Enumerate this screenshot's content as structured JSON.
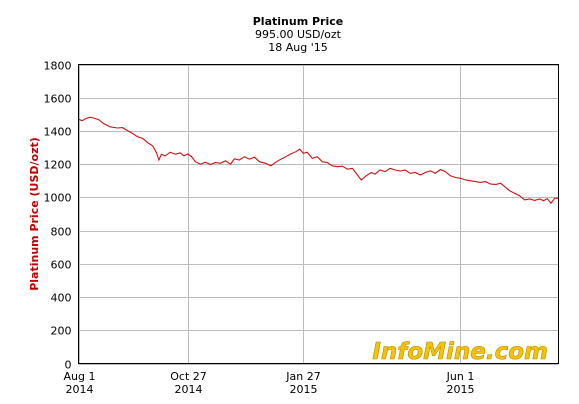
{
  "chart_data": {
    "type": "line",
    "title": "Platinum Price",
    "subtitle_value": "995.00 USD/ozt",
    "subtitle_date": "18 Aug '15",
    "ylabel": "Platinum Price (USD/ozt)",
    "ylim": [
      0,
      1800
    ],
    "yticks": [
      0,
      200,
      400,
      600,
      800,
      1000,
      1200,
      1400,
      1600,
      1800
    ],
    "xlim": [
      "2014-08-01",
      "2015-08-18"
    ],
    "xticks": [
      {
        "date": "2014-08-01",
        "line1": "Aug 1",
        "line2": "2014"
      },
      {
        "date": "2014-10-27",
        "line1": "Oct 27",
        "line2": "2014"
      },
      {
        "date": "2015-01-27",
        "line1": "Jan 27",
        "line2": "2015"
      },
      {
        "date": "2015-06-01",
        "line1": "Jun 1",
        "line2": "2015"
      }
    ],
    "grid": true,
    "series": [
      {
        "color": "#cc1111",
        "points": [
          [
            "2014-08-01",
            1470
          ],
          [
            "2014-08-04",
            1462
          ],
          [
            "2014-08-07",
            1475
          ],
          [
            "2014-08-10",
            1482
          ],
          [
            "2014-08-13",
            1478
          ],
          [
            "2014-08-17",
            1468
          ],
          [
            "2014-08-21",
            1445
          ],
          [
            "2014-08-26",
            1425
          ],
          [
            "2014-09-01",
            1418
          ],
          [
            "2014-09-05",
            1420
          ],
          [
            "2014-09-09",
            1402
          ],
          [
            "2014-09-13",
            1385
          ],
          [
            "2014-09-17",
            1365
          ],
          [
            "2014-09-21",
            1355
          ],
          [
            "2014-09-25",
            1330
          ],
          [
            "2014-09-29",
            1310
          ],
          [
            "2014-10-02",
            1270
          ],
          [
            "2014-10-04",
            1225
          ],
          [
            "2014-10-06",
            1260
          ],
          [
            "2014-10-09",
            1250
          ],
          [
            "2014-10-13",
            1272
          ],
          [
            "2014-10-17",
            1260
          ],
          [
            "2014-10-21",
            1268
          ],
          [
            "2014-10-24",
            1250
          ],
          [
            "2014-10-27",
            1262
          ],
          [
            "2014-10-30",
            1245
          ],
          [
            "2014-11-02",
            1215
          ],
          [
            "2014-11-06",
            1200
          ],
          [
            "2014-11-10",
            1212
          ],
          [
            "2014-11-14",
            1198
          ],
          [
            "2014-11-18",
            1210
          ],
          [
            "2014-11-22",
            1205
          ],
          [
            "2014-11-26",
            1220
          ],
          [
            "2014-11-30",
            1200
          ],
          [
            "2014-12-03",
            1232
          ],
          [
            "2014-12-07",
            1225
          ],
          [
            "2014-12-11",
            1245
          ],
          [
            "2014-12-15",
            1230
          ],
          [
            "2014-12-19",
            1242
          ],
          [
            "2014-12-23",
            1215
          ],
          [
            "2014-12-28",
            1205
          ],
          [
            "2015-01-01",
            1190
          ],
          [
            "2015-01-05",
            1212
          ],
          [
            "2015-01-09",
            1230
          ],
          [
            "2015-01-13",
            1245
          ],
          [
            "2015-01-17",
            1262
          ],
          [
            "2015-01-21",
            1275
          ],
          [
            "2015-01-24",
            1290
          ],
          [
            "2015-01-27",
            1265
          ],
          [
            "2015-01-30",
            1272
          ],
          [
            "2015-02-03",
            1235
          ],
          [
            "2015-02-07",
            1245
          ],
          [
            "2015-02-11",
            1215
          ],
          [
            "2015-02-15",
            1210
          ],
          [
            "2015-02-19",
            1190
          ],
          [
            "2015-02-23",
            1185
          ],
          [
            "2015-02-27",
            1188
          ],
          [
            "2015-03-03",
            1170
          ],
          [
            "2015-03-07",
            1175
          ],
          [
            "2015-03-11",
            1135
          ],
          [
            "2015-03-14",
            1105
          ],
          [
            "2015-03-18",
            1130
          ],
          [
            "2015-03-22",
            1150
          ],
          [
            "2015-03-25",
            1140
          ],
          [
            "2015-03-29",
            1165
          ],
          [
            "2015-04-02",
            1155
          ],
          [
            "2015-04-06",
            1175
          ],
          [
            "2015-04-10",
            1165
          ],
          [
            "2015-04-14",
            1158
          ],
          [
            "2015-04-18",
            1165
          ],
          [
            "2015-04-22",
            1145
          ],
          [
            "2015-04-26",
            1150
          ],
          [
            "2015-04-30",
            1135
          ],
          [
            "2015-05-04",
            1150
          ],
          [
            "2015-05-08",
            1160
          ],
          [
            "2015-05-12",
            1145
          ],
          [
            "2015-05-16",
            1168
          ],
          [
            "2015-05-20",
            1155
          ],
          [
            "2015-05-24",
            1130
          ],
          [
            "2015-05-28",
            1120
          ],
          [
            "2015-06-01",
            1115
          ],
          [
            "2015-06-05",
            1105
          ],
          [
            "2015-06-09",
            1100
          ],
          [
            "2015-06-13",
            1095
          ],
          [
            "2015-06-17",
            1090
          ],
          [
            "2015-06-21",
            1095
          ],
          [
            "2015-06-25",
            1080
          ],
          [
            "2015-06-29",
            1078
          ],
          [
            "2015-07-03",
            1085
          ],
          [
            "2015-07-07",
            1060
          ],
          [
            "2015-07-10",
            1040
          ],
          [
            "2015-07-14",
            1025
          ],
          [
            "2015-07-18",
            1010
          ],
          [
            "2015-07-22",
            985
          ],
          [
            "2015-07-26",
            990
          ],
          [
            "2015-07-30",
            982
          ],
          [
            "2015-08-03",
            990
          ],
          [
            "2015-08-06",
            980
          ],
          [
            "2015-08-09",
            992
          ],
          [
            "2015-08-12",
            965
          ],
          [
            "2015-08-15",
            995
          ],
          [
            "2015-08-18",
            995
          ]
        ]
      }
    ]
  },
  "watermark": "InfoMine.com"
}
